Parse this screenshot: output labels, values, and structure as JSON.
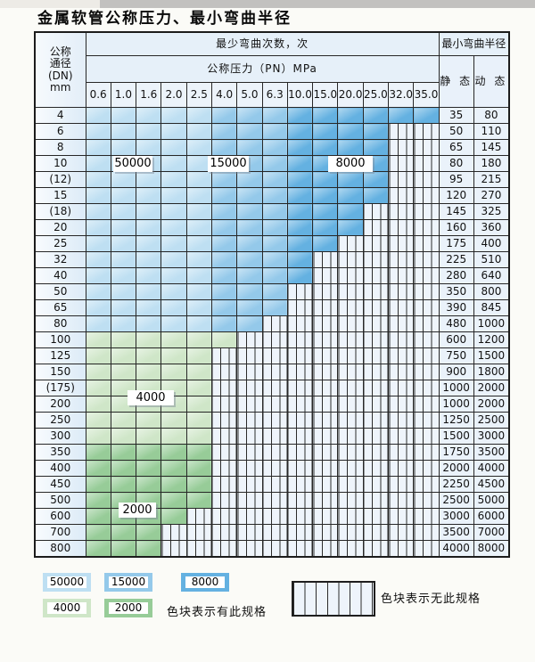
{
  "title": "金属软管公称压力、最小弯曲半径",
  "colors": {
    "bend_50000": "#bedff2",
    "bend_15000": "#94c9ea",
    "bend_8000": "#64b1e1",
    "bend_4000": "#cfe6c8",
    "bend_2000": "#97cc98",
    "hatch_bg": "#eef4fb",
    "border": "#272727"
  },
  "table": {
    "corner_lines": [
      "公称",
      "通径",
      "(DN)",
      "mm"
    ],
    "bend_header": "最少弯曲次数，次",
    "pressure_header": "公称压力（PN）MPa",
    "radius_header": "最小弯曲半径",
    "static_header": "静 态",
    "dynamic_header": "动 态",
    "pressure_columns": [
      "0.6",
      "1.0",
      "1.6",
      "2.0",
      "2.5",
      "4.0",
      "5.0",
      "6.3",
      "10.0",
      "15.0",
      "20.0",
      "25.0",
      "32.0",
      "35.0"
    ],
    "blue_bands": [
      {
        "from_col": 0,
        "to_col": 4,
        "bend_count": "50000"
      },
      {
        "from_col": 5,
        "to_col": 7,
        "bend_count": "15000"
      },
      {
        "from_col": 8,
        "to_col": 13,
        "bend_count": "8000"
      }
    ],
    "rows": [
      {
        "dn": "4",
        "max_pn": "35.0",
        "palette": "blue",
        "static": "35",
        "dynamic": "80"
      },
      {
        "dn": "6",
        "max_pn": "25.0",
        "palette": "blue",
        "static": "50",
        "dynamic": "110"
      },
      {
        "dn": "8",
        "max_pn": "25.0",
        "palette": "blue",
        "static": "65",
        "dynamic": "145"
      },
      {
        "dn": "10",
        "max_pn": "25.0",
        "palette": "blue",
        "static": "80",
        "dynamic": "180"
      },
      {
        "dn": "(12)",
        "max_pn": "25.0",
        "palette": "blue",
        "static": "95",
        "dynamic": "215"
      },
      {
        "dn": "15",
        "max_pn": "25.0",
        "palette": "blue",
        "static": "120",
        "dynamic": "270"
      },
      {
        "dn": "(18)",
        "max_pn": "20.0",
        "palette": "blue",
        "static": "145",
        "dynamic": "325"
      },
      {
        "dn": "20",
        "max_pn": "20.0",
        "palette": "blue",
        "static": "160",
        "dynamic": "360"
      },
      {
        "dn": "25",
        "max_pn": "15.0",
        "palette": "blue",
        "static": "175",
        "dynamic": "400"
      },
      {
        "dn": "32",
        "max_pn": "10.0",
        "palette": "blue",
        "static": "225",
        "dynamic": "510"
      },
      {
        "dn": "40",
        "max_pn": "10.0",
        "palette": "blue",
        "static": "280",
        "dynamic": "640"
      },
      {
        "dn": "50",
        "max_pn": "6.3",
        "palette": "blue",
        "static": "350",
        "dynamic": "800"
      },
      {
        "dn": "65",
        "max_pn": "6.3",
        "palette": "blue",
        "static": "390",
        "dynamic": "845"
      },
      {
        "dn": "80",
        "max_pn": "5.0",
        "palette": "blue",
        "static": "480",
        "dynamic": "1000"
      },
      {
        "dn": "100",
        "max_pn": "4.0",
        "palette": "green4000",
        "static": "600",
        "dynamic": "1200"
      },
      {
        "dn": "125",
        "max_pn": "2.5",
        "palette": "green4000",
        "static": "750",
        "dynamic": "1500"
      },
      {
        "dn": "150",
        "max_pn": "2.5",
        "palette": "green4000",
        "static": "900",
        "dynamic": "1800"
      },
      {
        "dn": "(175)",
        "max_pn": "2.5",
        "palette": "green4000",
        "static": "1000",
        "dynamic": "2000"
      },
      {
        "dn": "200",
        "max_pn": "2.5",
        "palette": "green4000",
        "static": "1000",
        "dynamic": "2000"
      },
      {
        "dn": "250",
        "max_pn": "2.5",
        "palette": "green4000",
        "static": "1250",
        "dynamic": "2500"
      },
      {
        "dn": "300",
        "max_pn": "2.5",
        "palette": "green4000",
        "static": "1500",
        "dynamic": "3000"
      },
      {
        "dn": "350",
        "max_pn": "2.5",
        "palette": "green2000",
        "static": "1750",
        "dynamic": "3500"
      },
      {
        "dn": "400",
        "max_pn": "2.5",
        "palette": "green2000",
        "static": "2000",
        "dynamic": "4000"
      },
      {
        "dn": "450",
        "max_pn": "2.5",
        "palette": "green2000",
        "static": "2250",
        "dynamic": "4500"
      },
      {
        "dn": "500",
        "max_pn": "2.5",
        "palette": "green2000",
        "static": "2500",
        "dynamic": "5000"
      },
      {
        "dn": "600",
        "max_pn": "2.0",
        "palette": "green2000",
        "static": "3000",
        "dynamic": "6000"
      },
      {
        "dn": "700",
        "max_pn": "1.6",
        "palette": "green2000",
        "static": "3500",
        "dynamic": "7000"
      },
      {
        "dn": "800",
        "max_pn": "1.6",
        "palette": "green2000",
        "static": "4000",
        "dynamic": "8000"
      }
    ]
  },
  "overlay_labels": [
    {
      "text": "50000"
    },
    {
      "text": "15000"
    },
    {
      "text": "8000"
    },
    {
      "text": "4000"
    },
    {
      "text": "2000"
    }
  ],
  "legend": {
    "has_spec": [
      {
        "label": "50000",
        "color_key": "bend_50000"
      },
      {
        "label": "15000",
        "color_key": "bend_15000"
      },
      {
        "label": "8000",
        "color_key": "bend_8000"
      },
      {
        "label": "4000",
        "color_key": "bend_4000"
      },
      {
        "label": "2000",
        "color_key": "bend_2000"
      }
    ],
    "has_spec_note": "色块表示有此规格",
    "no_spec_note": "色块表示无此规格"
  }
}
